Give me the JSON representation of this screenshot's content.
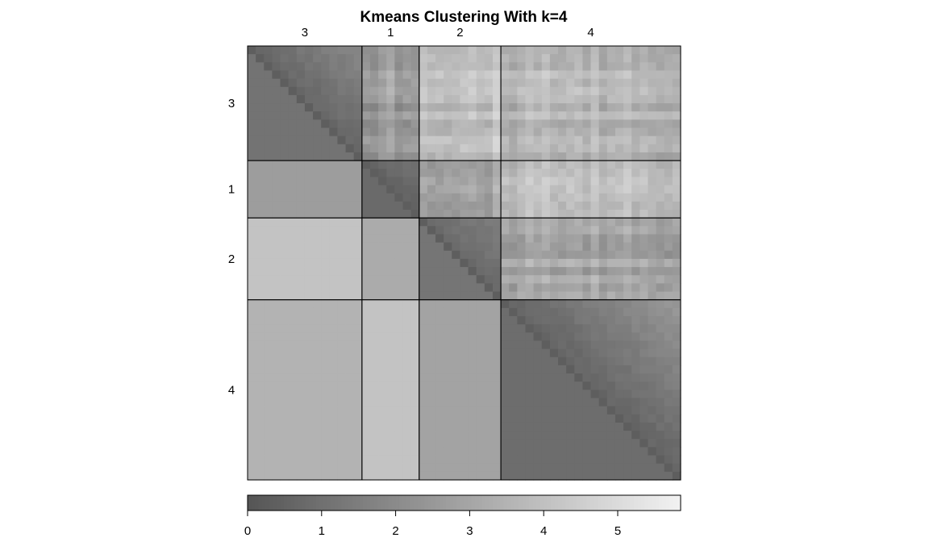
{
  "chart_data": {
    "type": "heatmap",
    "title": "Kmeans Clustering With k=4",
    "xlabel": "",
    "ylabel": "",
    "clusters": [
      {
        "label": "3",
        "size": 14
      },
      {
        "label": "1",
        "size": 7
      },
      {
        "label": "2",
        "size": 10
      },
      {
        "label": "4",
        "size": 22
      }
    ],
    "upper_triangle": "pairwise dissimilarities between observations ordered by cluster",
    "lower_triangle": "average dissimilarity between clusters",
    "within_cluster_avg": {
      "3": 1.1,
      "1": 0.8,
      "2": 1.2,
      "4": 0.9
    },
    "between_cluster_avg": [
      {
        "pair": [
          "3",
          "1"
        ],
        "value": 2.7
      },
      {
        "pair": [
          "3",
          "2"
        ],
        "value": 4.1
      },
      {
        "pair": [
          "3",
          "4"
        ],
        "value": 3.5
      },
      {
        "pair": [
          "1",
          "2"
        ],
        "value": 3.2
      },
      {
        "pair": [
          "1",
          "4"
        ],
        "value": 4.1
      },
      {
        "pair": [
          "2",
          "4"
        ],
        "value": 2.9
      }
    ],
    "colorbar": {
      "min": 0,
      "max": 5.85,
      "ticks": [
        "0",
        "1",
        "2",
        "3",
        "4",
        "5"
      ],
      "low_color": "#555555",
      "high_color": "#f2f2f2"
    }
  }
}
